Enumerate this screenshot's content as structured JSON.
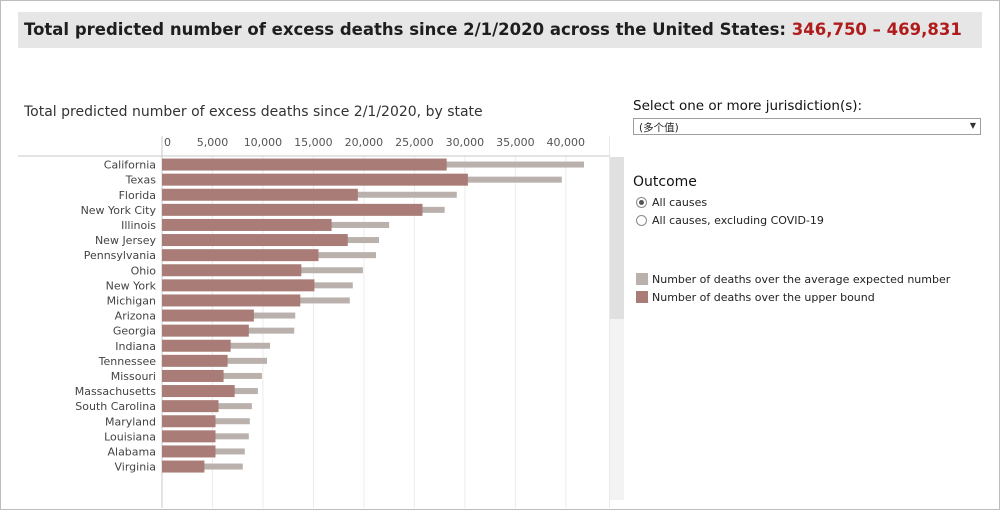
{
  "banner": {
    "prefix": "Total predicted number of excess deaths since 2/1/2020 across the United States:",
    "range": "346,750 – 469,831"
  },
  "filter": {
    "label": "Select one or more jurisdiction(s):",
    "value": "(多个值)"
  },
  "outcome": {
    "title": "Outcome",
    "options": [
      {
        "label": "All causes",
        "selected": true
      },
      {
        "label": "All causes, excluding COVID-19",
        "selected": false
      }
    ]
  },
  "colors": {
    "average": "#bab0ac",
    "upper": "#a97c77",
    "accent": "#b01c1c"
  },
  "chart_data": {
    "type": "bar",
    "orientation": "horizontal",
    "title": "Total predicted number of excess deaths since 2/1/2020, by state",
    "xlim": [
      0,
      42000
    ],
    "xticks": [
      0,
      5000,
      10000,
      15000,
      20000,
      25000,
      30000,
      35000,
      40000
    ],
    "tick_labels": [
      "0",
      "5,000",
      "10,000",
      "15,000",
      "20,000",
      "25,000",
      "30,000",
      "35,000",
      "40,000"
    ],
    "categories": [
      "California",
      "Texas",
      "Florida",
      "New York City",
      "Illinois",
      "New Jersey",
      "Pennsylvania",
      "Ohio",
      "New York",
      "Michigan",
      "Arizona",
      "Georgia",
      "Indiana",
      "Tennessee",
      "Missouri",
      "Massachusetts",
      "South Carolina",
      "Maryland",
      "Louisiana",
      "Alabama",
      "Virginia"
    ],
    "series": [
      {
        "name": "Number of deaths over the average expected number",
        "color": "#bab0ac",
        "values": [
          41800,
          39600,
          29200,
          28000,
          22500,
          21500,
          21200,
          19900,
          18900,
          18600,
          13200,
          13100,
          10700,
          10400,
          9900,
          9500,
          8900,
          8700,
          8600,
          8200,
          8000
        ]
      },
      {
        "name": "Number of deaths over the upper bound",
        "color": "#a97c77",
        "values": [
          28200,
          30300,
          19400,
          25800,
          16800,
          18400,
          15500,
          13800,
          15100,
          13700,
          9100,
          8600,
          6800,
          6500,
          6100,
          7200,
          5600,
          5300,
          5300,
          5300,
          4200
        ]
      }
    ]
  }
}
